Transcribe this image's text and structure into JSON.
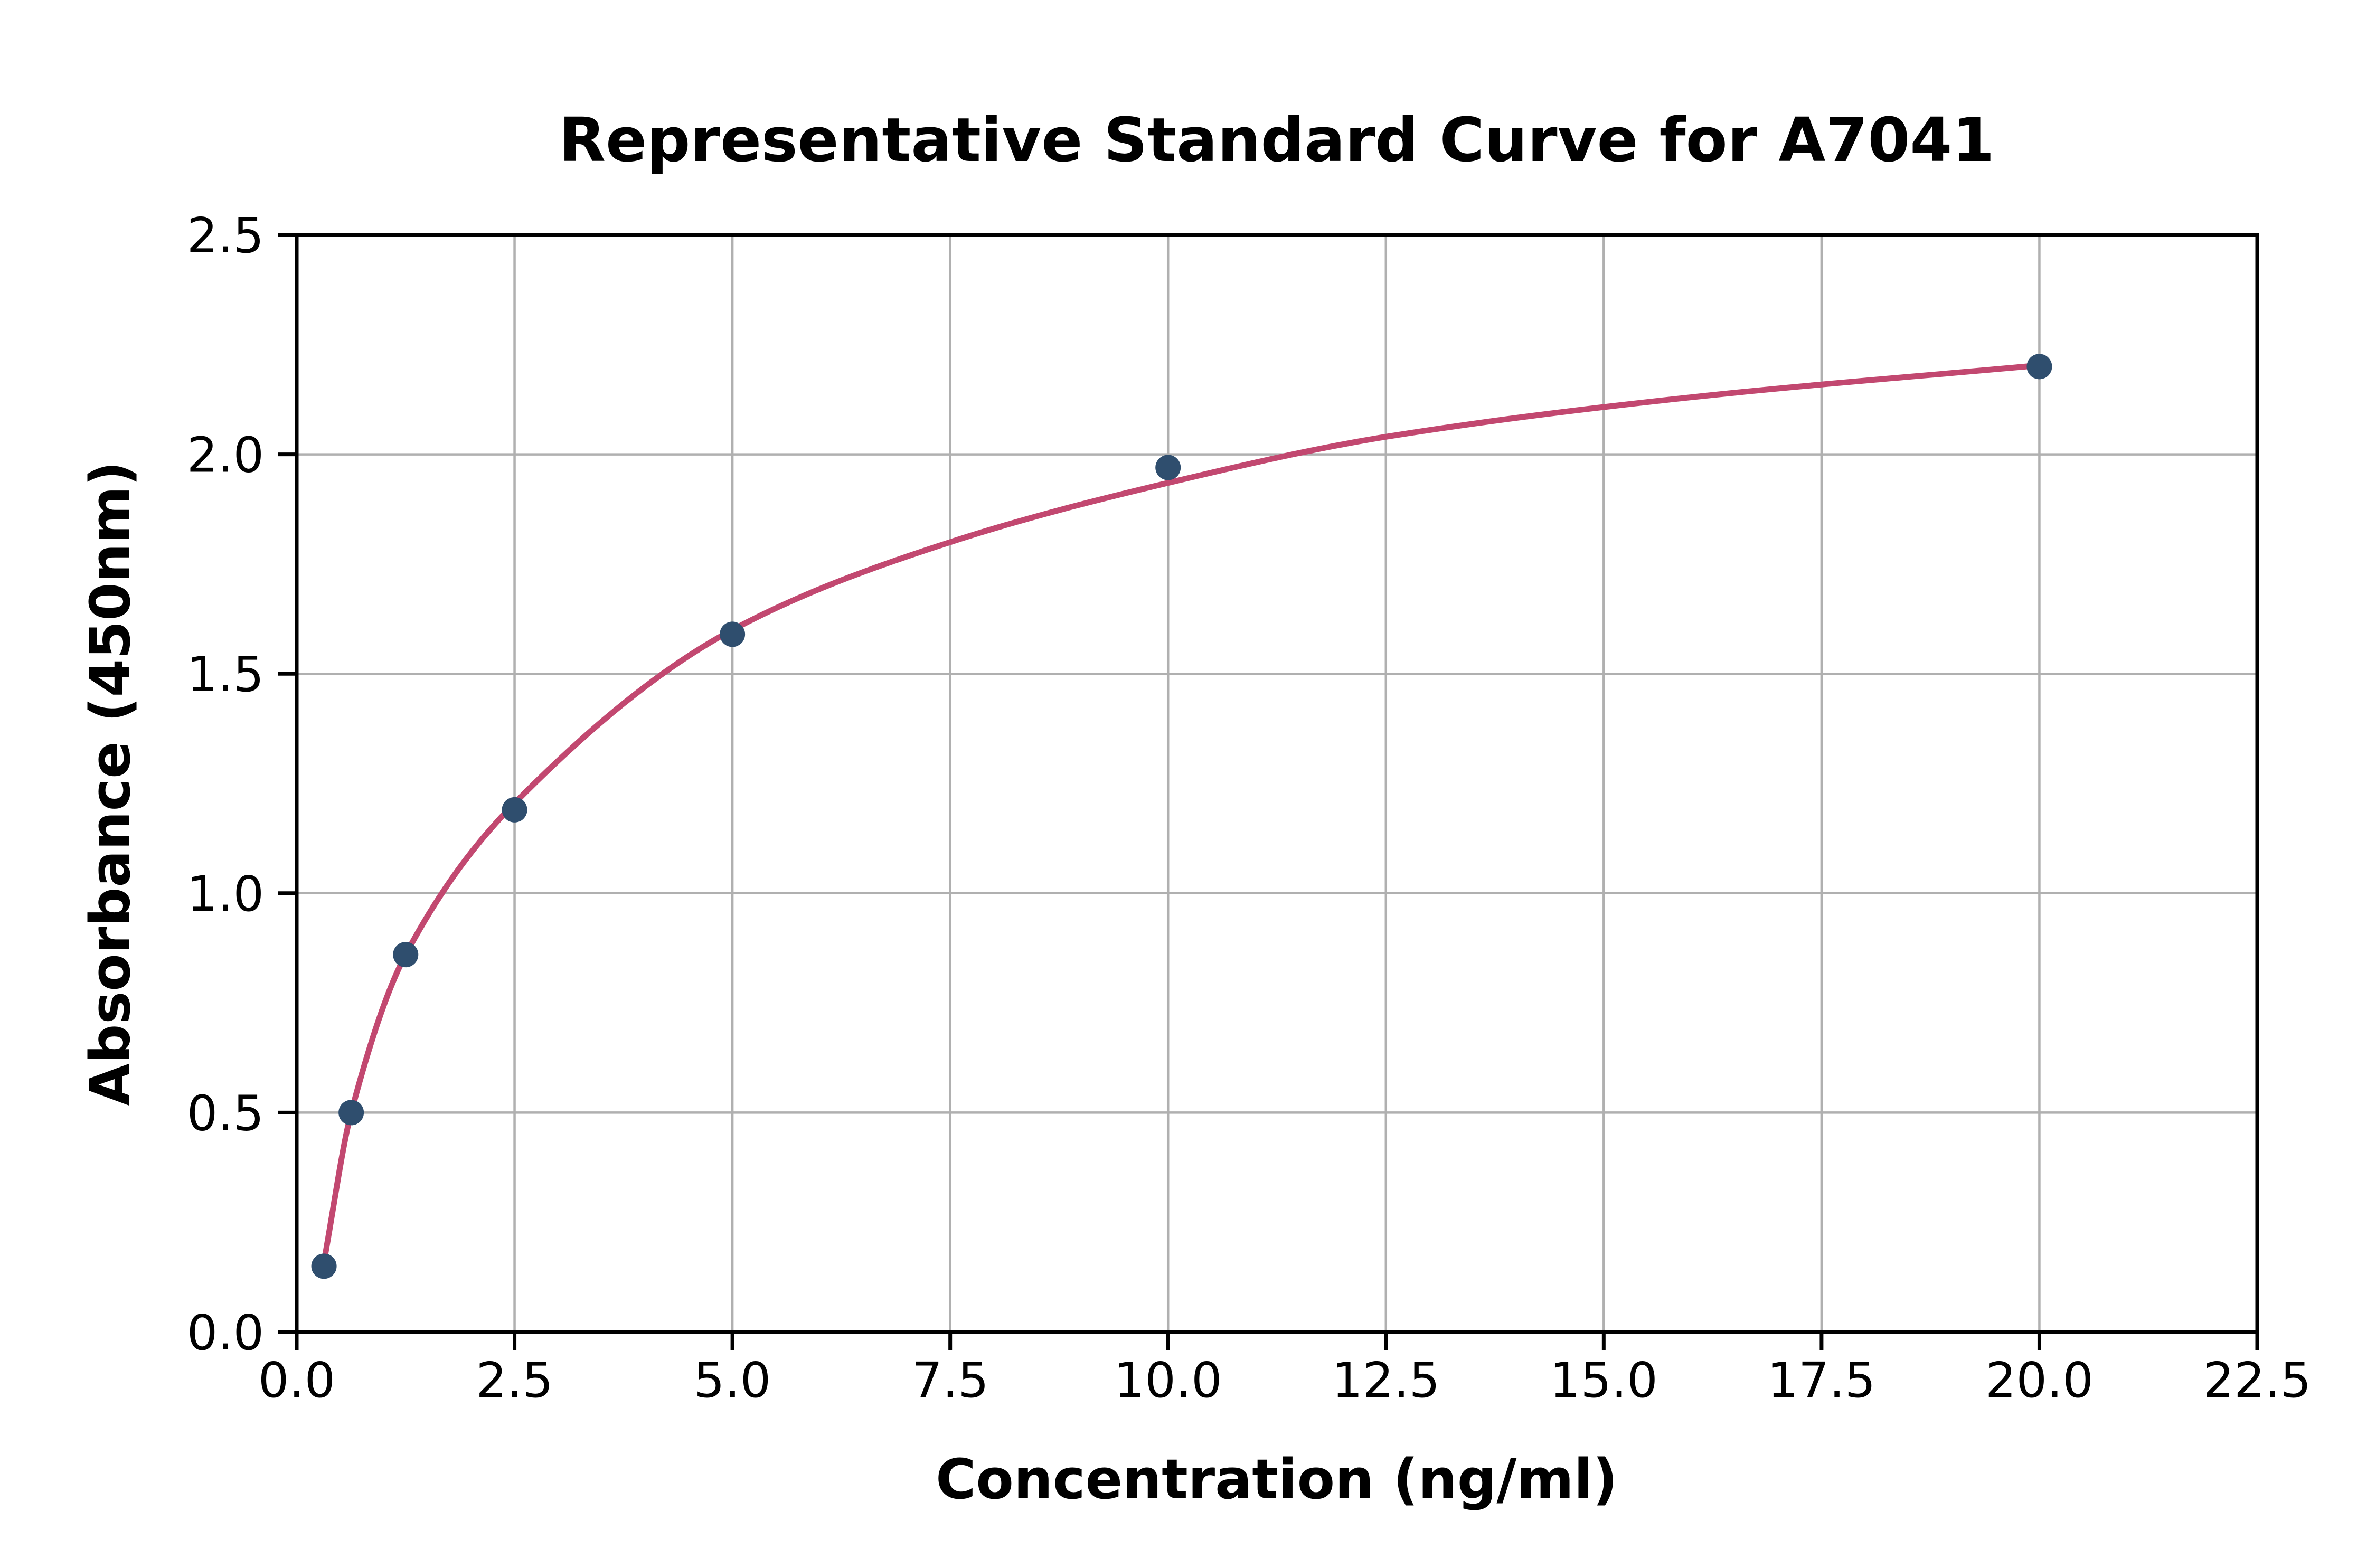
{
  "chart_data": {
    "type": "scatter",
    "title": "Representative Standard Curve for A7041",
    "xlabel": "Concentration (ng/ml)",
    "ylabel": "Absorbance (450nm)",
    "xlim": [
      0,
      22.5
    ],
    "ylim": [
      0,
      2.5
    ],
    "grid": true,
    "legend": "none",
    "x_ticks": [
      0.0,
      2.5,
      5.0,
      7.5,
      10.0,
      12.5,
      15.0,
      17.5,
      20.0,
      22.5
    ],
    "x_tick_labels": [
      "0.0",
      "2.5",
      "5.0",
      "7.5",
      "10.0",
      "12.5",
      "15.0",
      "17.5",
      "20.0",
      "22.5"
    ],
    "y_ticks": [
      0.0,
      0.5,
      1.0,
      1.5,
      2.0,
      2.5
    ],
    "y_tick_labels": [
      "0.0",
      "0.5",
      "1.0",
      "1.5",
      "2.0",
      "2.5"
    ],
    "grid_x_values": [
      2.5,
      5.0,
      7.5,
      10.0,
      12.5,
      15.0,
      17.5,
      20.0,
      22.5
    ],
    "grid_y_values": [
      0.5,
      1.0,
      1.5,
      2.0
    ],
    "series": [
      {
        "name": "standard-points",
        "style": "scatter",
        "x": [
          0.3125,
          0.625,
          1.25,
          2.5,
          5,
          10,
          20
        ],
        "y": [
          0.15,
          0.5,
          0.86,
          1.19,
          1.59,
          1.97,
          2.2
        ]
      },
      {
        "name": "fitted-curve",
        "style": "line",
        "x": [
          0.3125,
          0.625,
          1.25,
          2.5,
          5,
          7.5,
          10,
          12.5,
          16,
          20
        ],
        "y": [
          0.16,
          0.5,
          0.86,
          1.205,
          1.6,
          1.8,
          1.935,
          2.04,
          2.13,
          2.203
        ]
      }
    ],
    "colors": {
      "curve": "#c24870",
      "marker": "#2f4e6e",
      "grid": "#b0b0b0",
      "axis": "#000000",
      "text": "#000000",
      "background": "#ffffff"
    }
  }
}
